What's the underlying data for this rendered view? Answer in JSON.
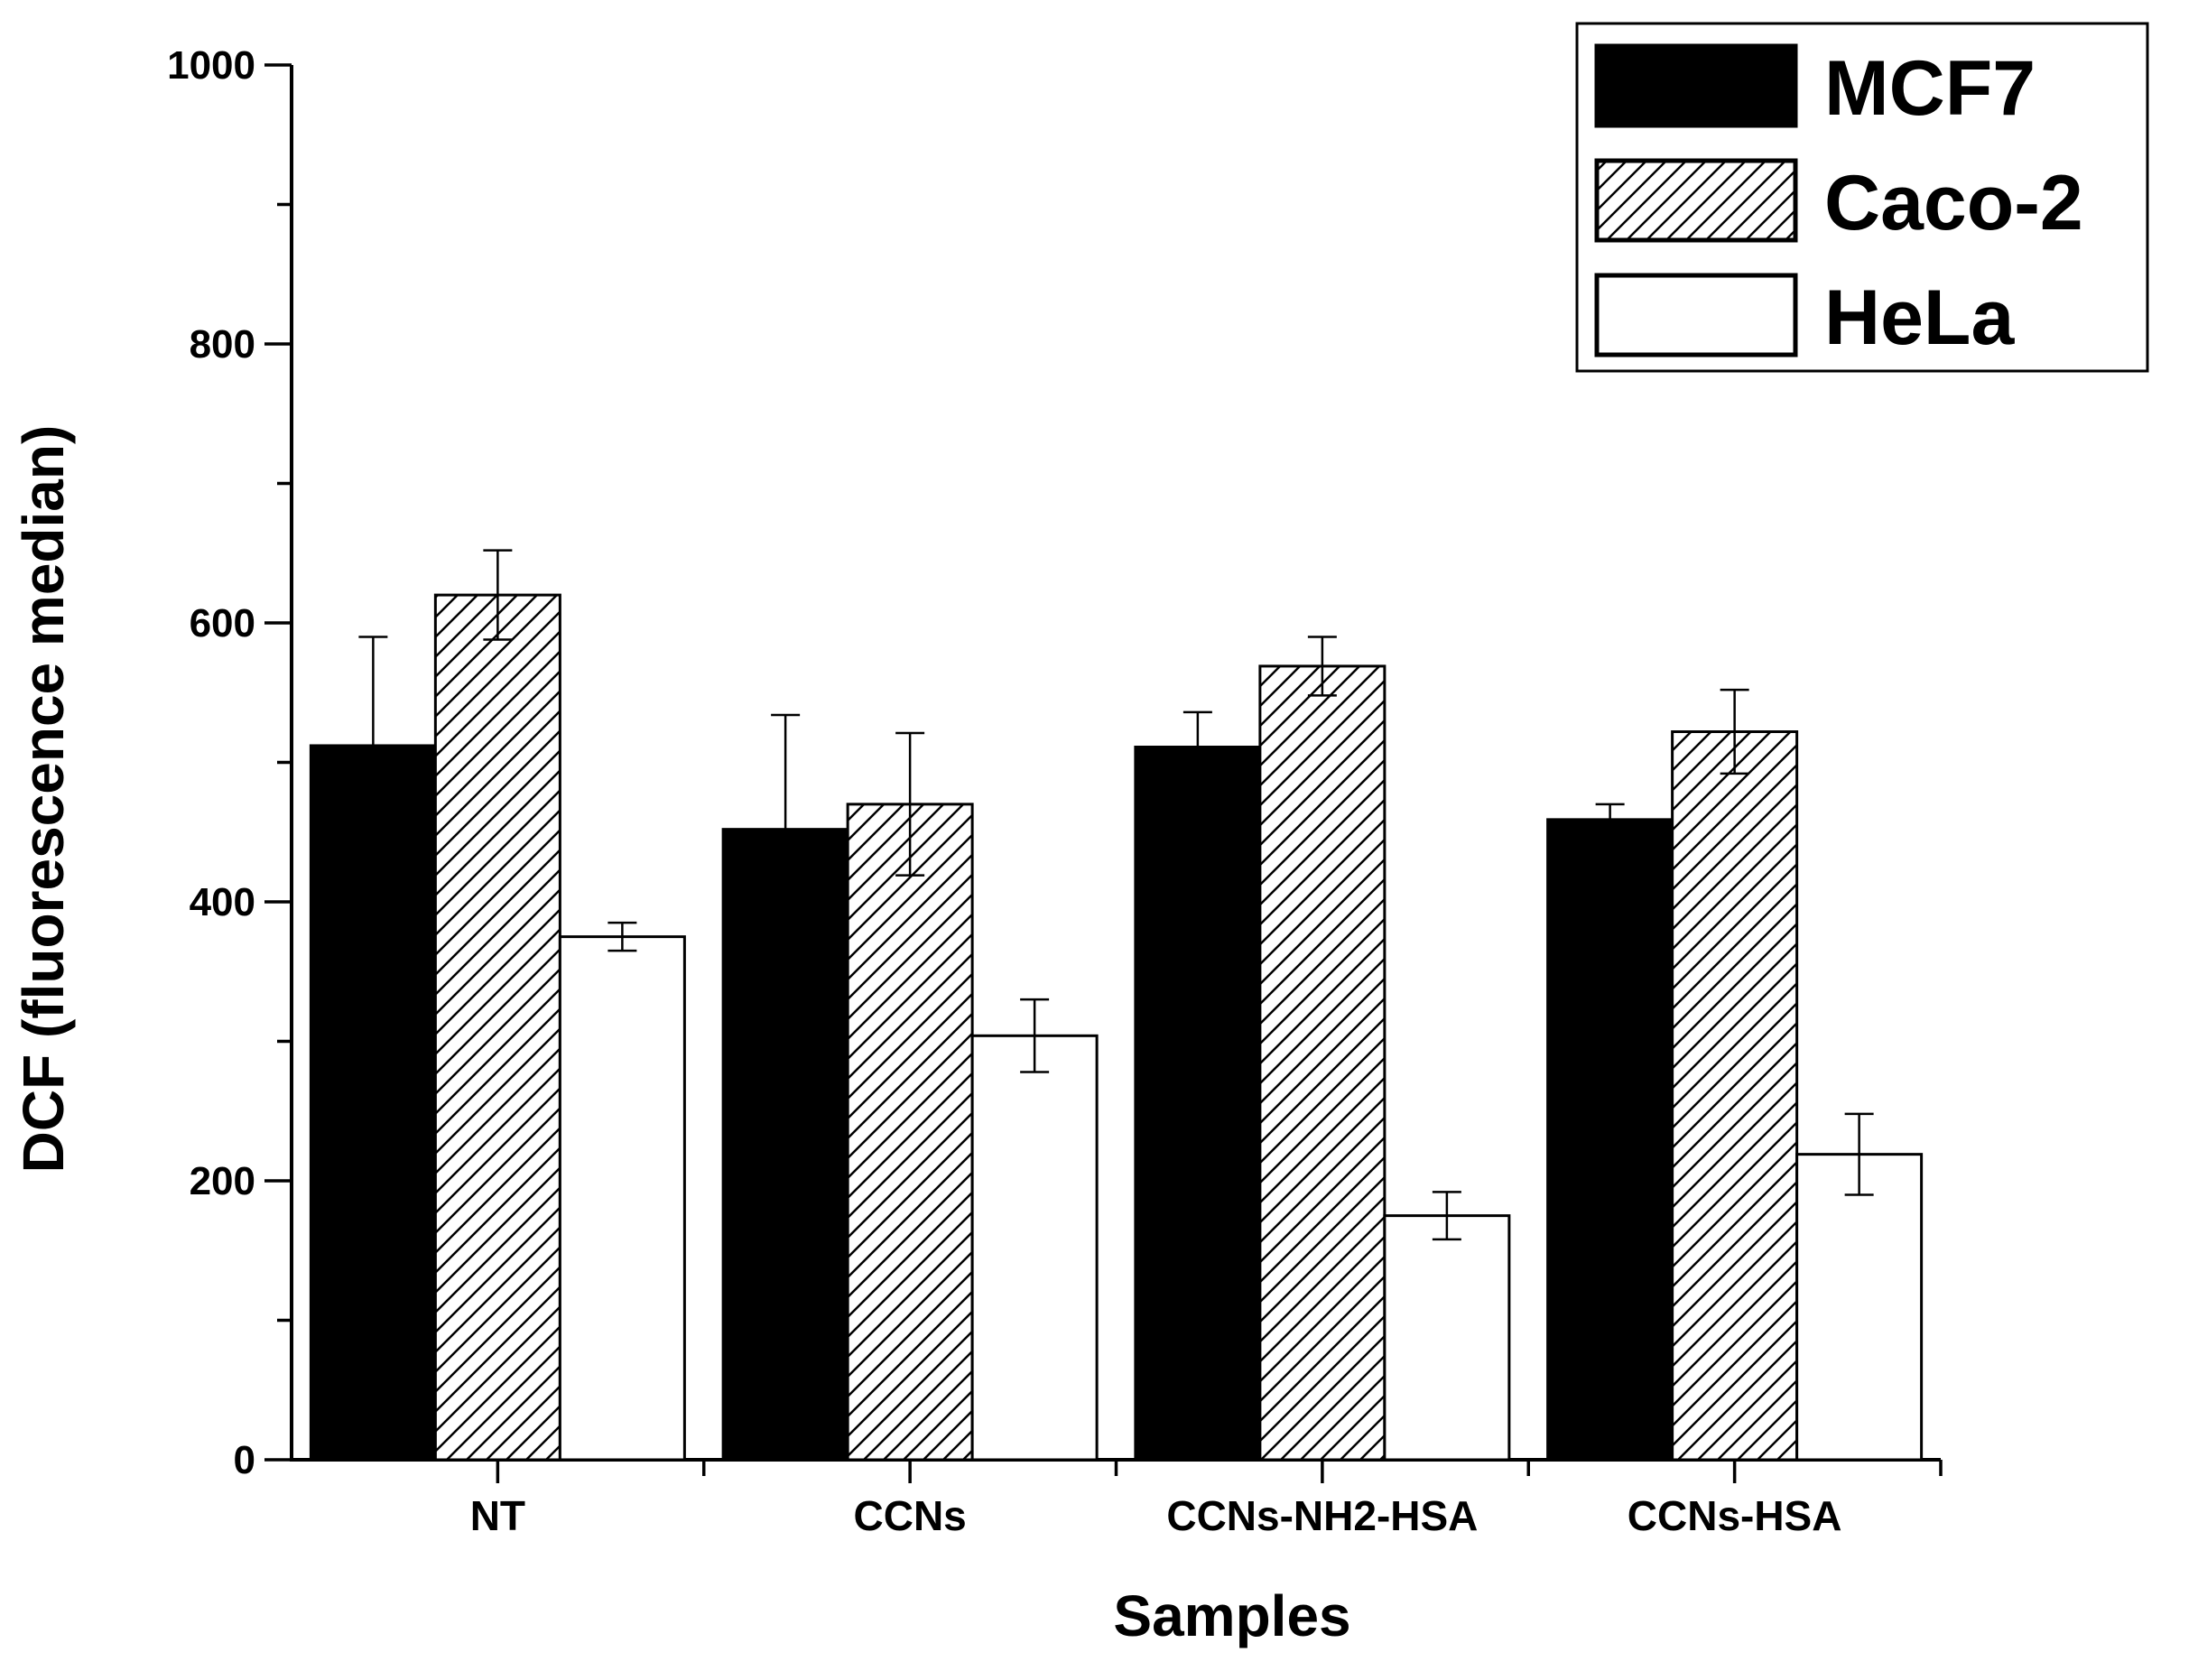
{
  "chart_data": {
    "type": "bar",
    "title": "",
    "xlabel": "Samples",
    "ylabel": "DCF (fluorescence median)",
    "ylim": [
      0,
      1000
    ],
    "yticks": [
      0,
      200,
      400,
      600,
      800,
      1000
    ],
    "y_minor_step": 100,
    "categories": [
      "NT",
      "CCNs",
      "CCNs-NH2-HSA",
      "CCNs-HSA"
    ],
    "series": [
      {
        "name": "MCF7",
        "fill": "solid",
        "color": "#000000",
        "values": [
          512,
          452,
          511,
          459
        ],
        "errors": [
          78,
          82,
          25,
          11
        ]
      },
      {
        "name": "Caco-2",
        "fill": "hatched",
        "color": "#000000",
        "values": [
          620,
          470,
          569,
          522
        ],
        "errors": [
          32,
          51,
          21,
          30
        ]
      },
      {
        "name": "HeLa",
        "fill": "open",
        "color": "#ffffff",
        "values": [
          375,
          304,
          175,
          219
        ],
        "errors": [
          10,
          26,
          17,
          29
        ]
      }
    ],
    "legend_position": "top-right",
    "grid": false
  }
}
